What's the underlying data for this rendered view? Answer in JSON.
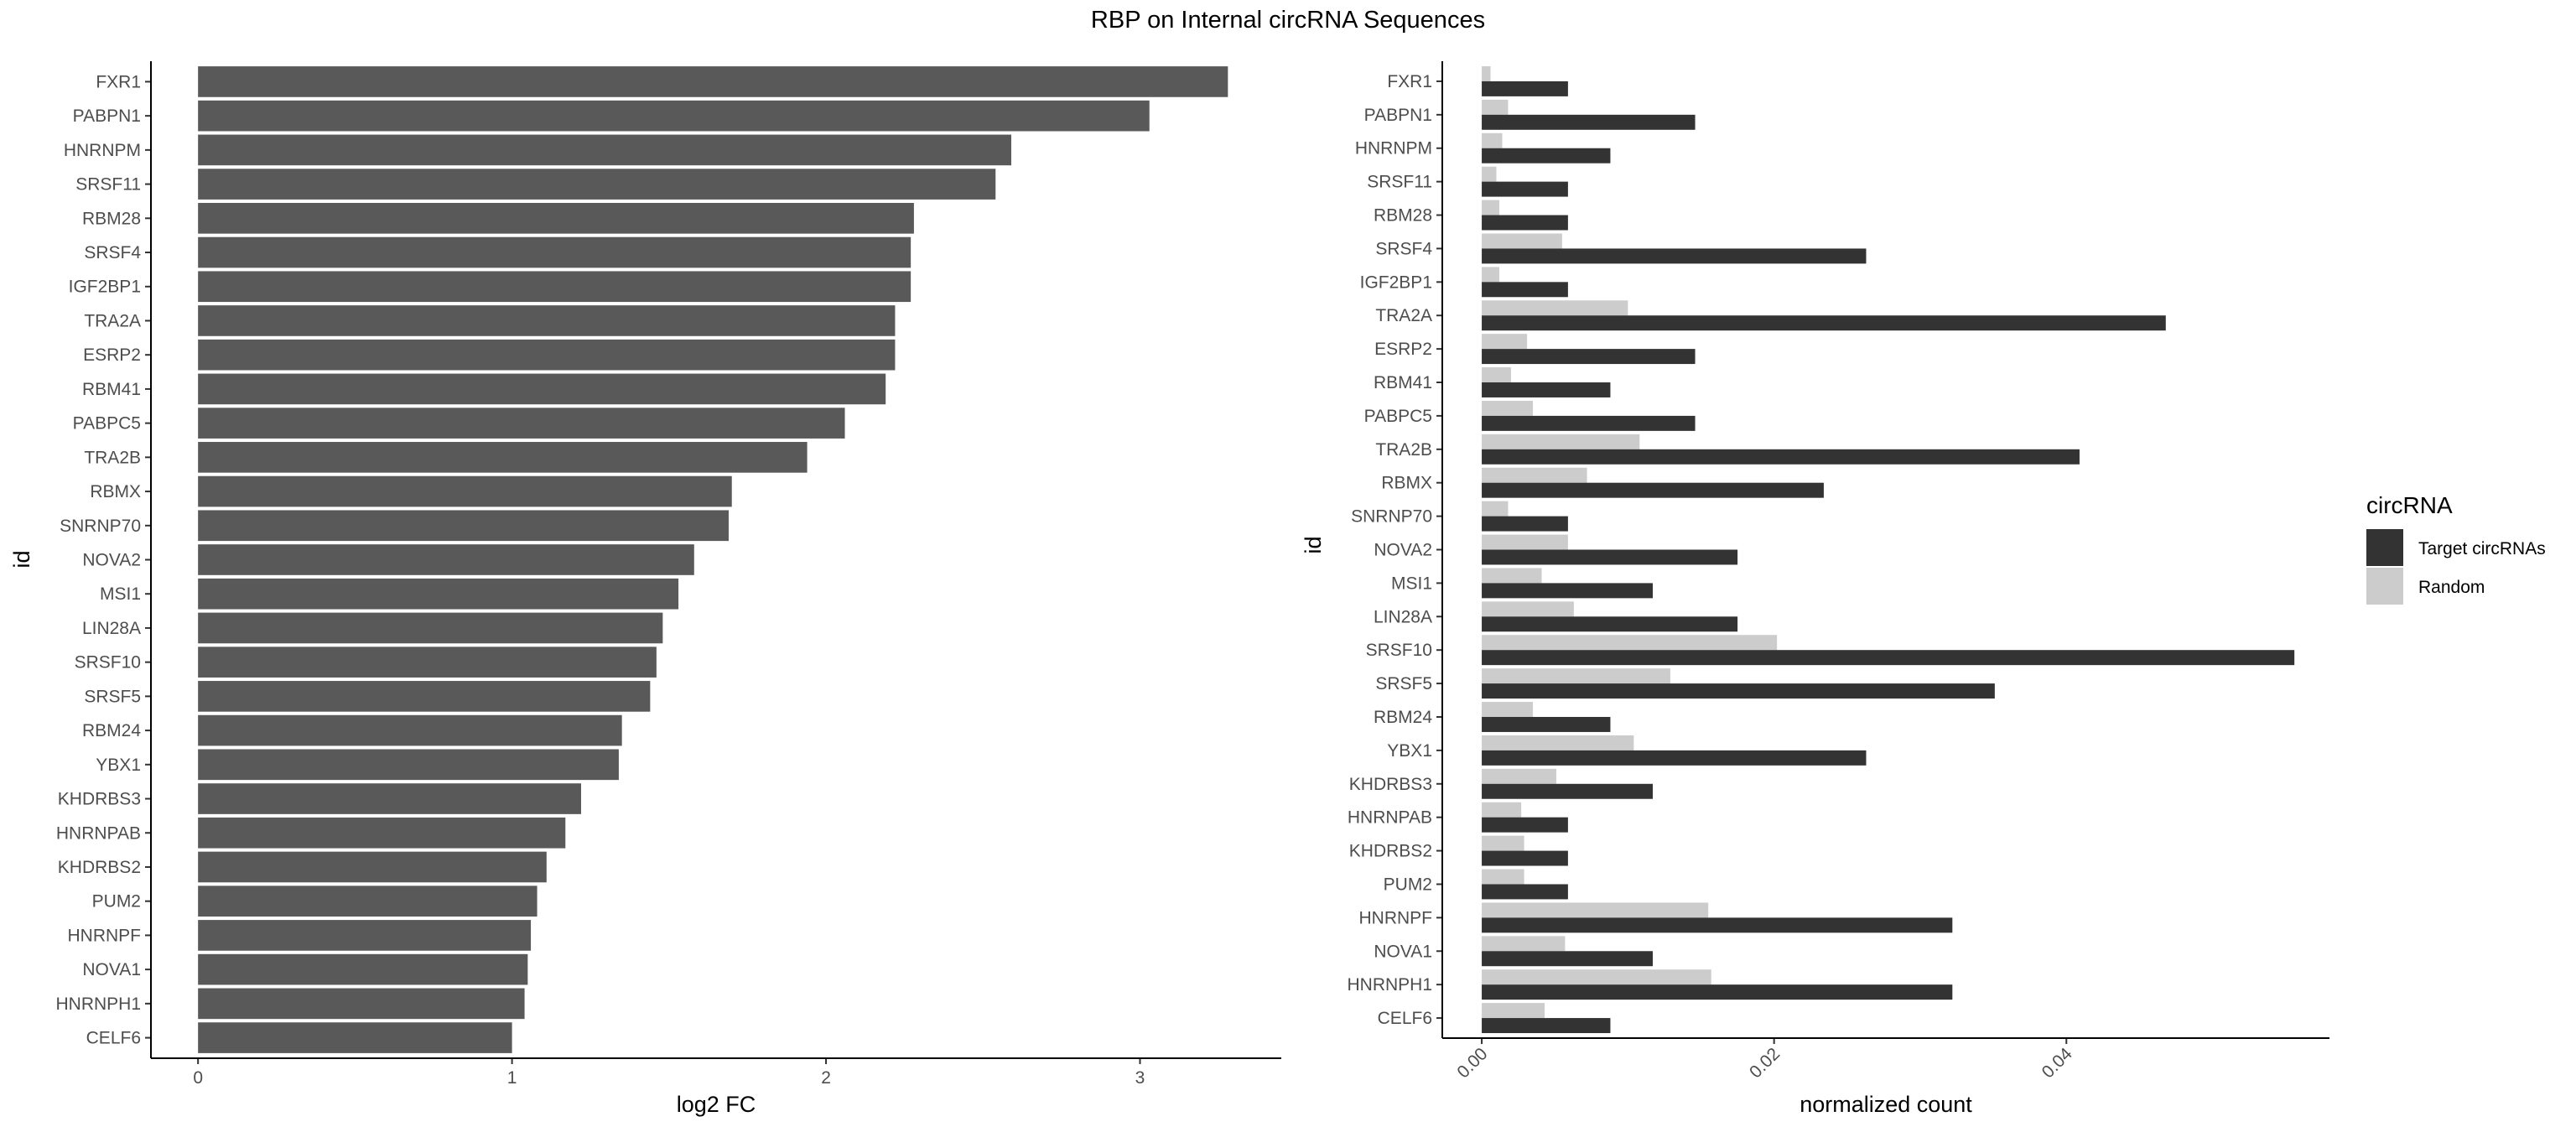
{
  "title": "RBP on Internal circRNA Sequences",
  "colors": {
    "bar_left": "#595959",
    "target": "#333333",
    "random": "#cccccc"
  },
  "chart_data": [
    {
      "type": "bar",
      "orientation": "horizontal",
      "xlabel": "log2 FC",
      "ylabel": "id",
      "xlim": [
        -0.15,
        3.45
      ],
      "xticks": [
        0,
        1,
        2,
        3
      ],
      "categories": [
        "FXR1",
        "PABPN1",
        "HNRNPM",
        "SRSF11",
        "RBM28",
        "SRSF4",
        "IGF2BP1",
        "TRA2A",
        "ESRP2",
        "RBM41",
        "PABPC5",
        "TRA2B",
        "RBMX",
        "SNRNP70",
        "NOVA2",
        "MSI1",
        "LIN28A",
        "SRSF10",
        "SRSF5",
        "RBM24",
        "YBX1",
        "KHDRBS3",
        "HNRNPAB",
        "KHDRBS2",
        "PUM2",
        "HNRNPF",
        "NOVA1",
        "HNRNPH1",
        "CELF6"
      ],
      "values": [
        3.28,
        3.03,
        2.59,
        2.54,
        2.28,
        2.27,
        2.27,
        2.22,
        2.22,
        2.19,
        2.06,
        1.94,
        1.7,
        1.69,
        1.58,
        1.53,
        1.48,
        1.46,
        1.44,
        1.35,
        1.34,
        1.22,
        1.17,
        1.11,
        1.08,
        1.06,
        1.05,
        1.04,
        1.0
      ]
    },
    {
      "type": "bar",
      "orientation": "horizontal",
      "xlabel": "normalized count",
      "ylabel": "id",
      "xlim": [
        -0.0027,
        0.058
      ],
      "xticks": [
        0.0,
        0.02,
        0.04
      ],
      "xtick_labels": [
        "0.00",
        "0.02",
        "0.04"
      ],
      "categories": [
        "FXR1",
        "PABPN1",
        "HNRNPM",
        "SRSF11",
        "RBM28",
        "SRSF4",
        "IGF2BP1",
        "TRA2A",
        "ESRP2",
        "RBM41",
        "PABPC5",
        "TRA2B",
        "RBMX",
        "SNRNP70",
        "NOVA2",
        "MSI1",
        "LIN28A",
        "SRSF10",
        "SRSF5",
        "RBM24",
        "YBX1",
        "KHDRBS3",
        "HNRNPAB",
        "KHDRBS2",
        "PUM2",
        "HNRNPF",
        "NOVA1",
        "HNRNPH1",
        "CELF6"
      ],
      "legend_title": "circRNA",
      "legend_position": "right",
      "series": [
        {
          "name": "Target circRNAs",
          "values": [
            0.0059,
            0.0146,
            0.0088,
            0.0059,
            0.0059,
            0.0263,
            0.0059,
            0.0468,
            0.0146,
            0.0088,
            0.0146,
            0.0409,
            0.0234,
            0.0059,
            0.0175,
            0.0117,
            0.0175,
            0.0556,
            0.0351,
            0.0088,
            0.0263,
            0.0117,
            0.0059,
            0.0059,
            0.0059,
            0.0322,
            0.0117,
            0.0322,
            0.0088
          ]
        },
        {
          "name": "Random",
          "values": [
            0.0006,
            0.0018,
            0.0014,
            0.001,
            0.0012,
            0.0055,
            0.0012,
            0.01,
            0.0031,
            0.002,
            0.0035,
            0.0108,
            0.0072,
            0.0018,
            0.0059,
            0.0041,
            0.0063,
            0.0202,
            0.0129,
            0.0035,
            0.0104,
            0.0051,
            0.0027,
            0.0029,
            0.0029,
            0.0155,
            0.0057,
            0.0157,
            0.0043
          ]
        }
      ]
    }
  ]
}
